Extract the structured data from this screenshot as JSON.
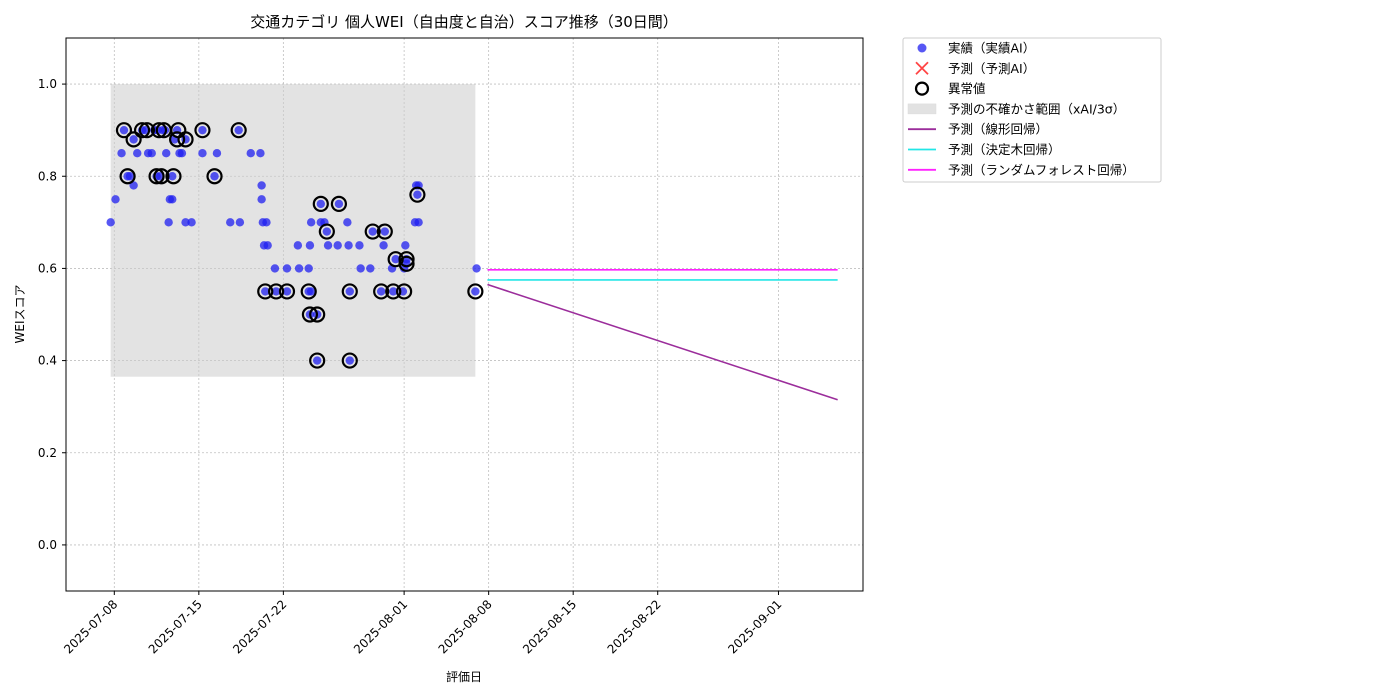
{
  "chart_data": {
    "type": "scatter",
    "title": "交通カテゴリ 個人WEI（自由度と自治）スコア推移（30日間）",
    "xlabel": "評価日",
    "ylabel": "WEIスコア",
    "xlim": [
      "2025-07-04",
      "2025-09-08"
    ],
    "ylim": [
      -0.1,
      1.1
    ],
    "yticks": [
      0.0,
      0.2,
      0.4,
      0.6,
      0.8,
      1.0
    ],
    "xticks": [
      "2025-07-08",
      "2025-07-15",
      "2025-07-22",
      "2025-08-01",
      "2025-08-08",
      "2025-08-15",
      "2025-08-22",
      "2025-09-01"
    ],
    "grid": true,
    "legend_position": "outside-top-right",
    "colors": {
      "actual": "#1f1ff0",
      "forecast_marker": "#ff4444",
      "anomaly": "#000000",
      "band": "#cccccc",
      "linear": "#9b2d9b",
      "tree": "#22e6e6",
      "forest": "#ff22ff"
    },
    "legend": [
      {
        "key": "actual",
        "label": "実績（実績AI）"
      },
      {
        "key": "forecast",
        "label": "予測（予測AI）"
      },
      {
        "key": "anomaly",
        "label": "異常値"
      },
      {
        "key": "band",
        "label": "予測の不確かさ範囲（xAI/3σ）"
      },
      {
        "key": "linear",
        "label": "予測（線形回帰）"
      },
      {
        "key": "tree",
        "label": "予測（決定木回帰）"
      },
      {
        "key": "forest",
        "label": "予測（ランダムフォレスト回帰）"
      }
    ],
    "uncertainty_band": {
      "x_start": 6.7,
      "x_end": 36.9,
      "y_low": 0.365,
      "y_high": 1.0
    },
    "actual_points": [
      [
        6.7,
        0.7
      ],
      [
        7.1,
        0.75
      ],
      [
        7.6,
        0.85
      ],
      [
        7.8,
        0.9
      ],
      [
        8.1,
        0.8
      ],
      [
        8.3,
        0.8
      ],
      [
        8.6,
        0.88
      ],
      [
        8.6,
        0.78
      ],
      [
        8.9,
        0.85
      ],
      [
        9.3,
        0.9
      ],
      [
        9.6,
        0.9
      ],
      [
        9.8,
        0.85
      ],
      [
        10.1,
        0.85
      ],
      [
        10.3,
        0.9
      ],
      [
        10.5,
        0.8
      ],
      [
        10.6,
        0.9
      ],
      [
        10.8,
        0.8
      ],
      [
        11.0,
        0.9
      ],
      [
        11.2,
        0.9
      ],
      [
        11.3,
        0.85
      ],
      [
        11.5,
        0.7
      ],
      [
        11.6,
        0.75
      ],
      [
        11.8,
        0.75
      ],
      [
        11.8,
        0.8
      ],
      [
        12.0,
        0.88
      ],
      [
        12.2,
        0.9
      ],
      [
        12.4,
        0.85
      ],
      [
        12.6,
        0.85
      ],
      [
        12.9,
        0.88
      ],
      [
        12.9,
        0.7
      ],
      [
        13.4,
        0.7
      ],
      [
        14.3,
        0.9
      ],
      [
        14.3,
        0.85
      ],
      [
        15.3,
        0.8
      ],
      [
        15.5,
        0.85
      ],
      [
        16.6,
        0.7
      ],
      [
        17.3,
        0.9
      ],
      [
        17.4,
        0.7
      ],
      [
        18.3,
        0.85
      ],
      [
        19.1,
        0.85
      ],
      [
        19.2,
        0.78
      ],
      [
        19.2,
        0.75
      ],
      [
        19.3,
        0.7
      ],
      [
        19.4,
        0.65
      ],
      [
        19.5,
        0.55
      ],
      [
        19.6,
        0.7
      ],
      [
        19.7,
        0.65
      ],
      [
        20.3,
        0.6
      ],
      [
        20.4,
        0.55
      ],
      [
        21.3,
        0.6
      ],
      [
        21.3,
        0.55
      ],
      [
        22.2,
        0.65
      ],
      [
        22.3,
        0.6
      ],
      [
        23.1,
        0.6
      ],
      [
        23.1,
        0.55
      ],
      [
        23.2,
        0.5
      ],
      [
        23.2,
        0.65
      ],
      [
        23.3,
        0.7
      ],
      [
        23.3,
        0.55
      ],
      [
        23.8,
        0.5
      ],
      [
        23.8,
        0.4
      ],
      [
        24.1,
        0.7
      ],
      [
        24.1,
        0.74
      ],
      [
        24.4,
        0.7
      ],
      [
        24.6,
        0.68
      ],
      [
        24.7,
        0.65
      ],
      [
        25.5,
        0.65
      ],
      [
        25.6,
        0.74
      ],
      [
        26.3,
        0.7
      ],
      [
        26.4,
        0.65
      ],
      [
        26.5,
        0.55
      ],
      [
        26.5,
        0.4
      ],
      [
        27.3,
        0.65
      ],
      [
        27.4,
        0.6
      ],
      [
        28.2,
        0.6
      ],
      [
        28.4,
        0.68
      ],
      [
        29.1,
        0.55
      ],
      [
        29.3,
        0.65
      ],
      [
        29.4,
        0.68
      ],
      [
        30.0,
        0.6
      ],
      [
        30.1,
        0.55
      ],
      [
        30.3,
        0.62
      ],
      [
        30.9,
        0.55
      ],
      [
        31.0,
        0.6
      ],
      [
        31.1,
        0.65
      ],
      [
        31.2,
        0.62
      ],
      [
        31.2,
        0.61
      ],
      [
        31.9,
        0.7
      ],
      [
        32.0,
        0.78
      ],
      [
        32.1,
        0.76
      ],
      [
        32.2,
        0.7
      ],
      [
        32.2,
        0.78
      ],
      [
        36.9,
        0.55
      ],
      [
        37.0,
        0.6
      ]
    ],
    "anomaly_points": [
      [
        7.8,
        0.9
      ],
      [
        8.1,
        0.8
      ],
      [
        8.6,
        0.88
      ],
      [
        9.3,
        0.9
      ],
      [
        9.7,
        0.9
      ],
      [
        10.5,
        0.8
      ],
      [
        10.7,
        0.9
      ],
      [
        10.9,
        0.8
      ],
      [
        11.1,
        0.9
      ],
      [
        11.9,
        0.8
      ],
      [
        12.2,
        0.88
      ],
      [
        12.3,
        0.9
      ],
      [
        12.9,
        0.88
      ],
      [
        14.3,
        0.9
      ],
      [
        15.3,
        0.8
      ],
      [
        17.3,
        0.9
      ],
      [
        19.5,
        0.55
      ],
      [
        20.4,
        0.55
      ],
      [
        21.3,
        0.55
      ],
      [
        23.1,
        0.55
      ],
      [
        23.2,
        0.5
      ],
      [
        23.8,
        0.5
      ],
      [
        23.8,
        0.4
      ],
      [
        24.1,
        0.74
      ],
      [
        24.6,
        0.68
      ],
      [
        25.6,
        0.74
      ],
      [
        26.5,
        0.55
      ],
      [
        26.5,
        0.4
      ],
      [
        28.4,
        0.68
      ],
      [
        29.1,
        0.55
      ],
      [
        29.4,
        0.68
      ],
      [
        30.1,
        0.55
      ],
      [
        30.3,
        0.62
      ],
      [
        31.0,
        0.55
      ],
      [
        31.2,
        0.62
      ],
      [
        31.2,
        0.61
      ],
      [
        32.1,
        0.76
      ],
      [
        36.9,
        0.55
      ]
    ],
    "forecast_lines": [
      {
        "key": "linear",
        "x": [
          37.9,
          66.9
        ],
        "y": [
          0.565,
          0.315
        ]
      },
      {
        "key": "tree",
        "x": [
          37.9,
          66.9
        ],
        "y": [
          0.575,
          0.575
        ]
      },
      {
        "key": "forest",
        "x": [
          37.9,
          66.9
        ],
        "y": [
          0.597,
          0.597
        ]
      }
    ]
  }
}
